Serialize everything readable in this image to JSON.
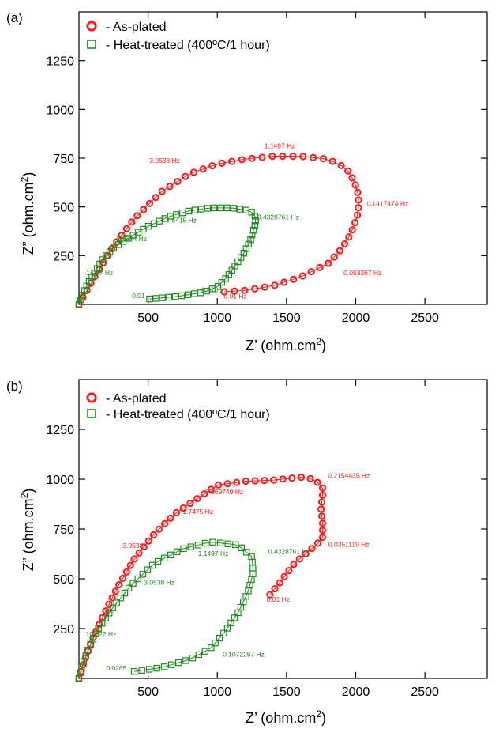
{
  "chart_data": [
    {
      "panel": "(a)",
      "type": "scatter",
      "xlabel": "Z’ (ohm.cm",
      "xlabel_sup": "2",
      "xlabel_close": ")",
      "ylabel": "Z” (ohm.cm",
      "ylabel_sup": "2",
      "ylabel_close": ")",
      "xlim": [
        0,
        2950
      ],
      "ylim": [
        0,
        1500
      ],
      "xticks": [
        "500",
        "1000",
        "1500",
        "2000",
        "2500"
      ],
      "xtick_values": [
        500,
        1000,
        1500,
        2000,
        2500
      ],
      "yticks": [
        "250",
        "500",
        "750",
        "1000",
        "1250"
      ],
      "ytick_values": [
        250,
        500,
        750,
        1000,
        1250
      ],
      "legend": "top-left",
      "series": [
        {
          "name": "- As-plated",
          "marker": "circle",
          "color": "#ff1a1a",
          "path": [
            [
              1050,
              65
            ],
            [
              1200,
              72
            ],
            [
              1400,
              95
            ],
            [
              1600,
              140
            ],
            [
              1800,
              210
            ],
            [
              1880,
              270
            ],
            [
              1940,
              330
            ],
            [
              1980,
              390
            ],
            [
              2010,
              450
            ],
            [
              2020,
              500
            ],
            [
              2020,
              560
            ],
            [
              1990,
              630
            ],
            [
              1930,
              700
            ],
            [
              1800,
              745
            ],
            [
              1600,
              760
            ],
            [
              1400,
              760
            ],
            [
              1200,
              745
            ],
            [
              1000,
              720
            ],
            [
              800,
              670
            ],
            [
              600,
              580
            ],
            [
              400,
              440
            ],
            [
              250,
              300
            ],
            [
              120,
              150
            ],
            [
              40,
              50
            ],
            [
              0,
              0
            ]
          ],
          "annotations": [
            {
              "text": "0.01 Hz",
              "x": 1130,
              "y": 30
            },
            {
              "text": "0.053367 Hz",
              "x": 2050,
              "y": 150
            },
            {
              "text": "0.1417474 Hz",
              "x": 2230,
              "y": 505
            },
            {
              "text": "1.1497 Hz",
              "x": 1450,
              "y": 800
            },
            {
              "text": "3.0538 Hz",
              "x": 620,
              "y": 725
            }
          ]
        },
        {
          "name": "- Heat-treated (400ºC/1 hour)",
          "marker": "square",
          "color": "#1f8a1f",
          "path": [
            [
              510,
              28
            ],
            [
              700,
              40
            ],
            [
              900,
              62
            ],
            [
              1000,
              90
            ],
            [
              1070,
              140
            ],
            [
              1130,
              200
            ],
            [
              1190,
              260
            ],
            [
              1240,
              330
            ],
            [
              1270,
              400
            ],
            [
              1280,
              445
            ],
            [
              1240,
              480
            ],
            [
              1100,
              495
            ],
            [
              950,
              495
            ],
            [
              800,
              480
            ],
            [
              650,
              450
            ],
            [
              500,
              400
            ],
            [
              380,
              350
            ],
            [
              250,
              290
            ],
            [
              170,
              230
            ],
            [
              120,
              170
            ],
            [
              60,
              100
            ],
            [
              20,
              40
            ],
            [
              0,
              0
            ]
          ],
          "annotations": [
            {
              "text": "0.01",
              "x": 430,
              "y": 32
            },
            {
              "text": "0.0705",
              "x": 960,
              "y": 62
            },
            {
              "text": "14.97 Hz",
              "x": 150,
              "y": 150
            },
            {
              "text": "21.544 Hz",
              "x": 380,
              "y": 325
            },
            {
              "text": "4.6415 Hz",
              "x": 740,
              "y": 420
            },
            {
              "text": "0.4328761 Hz",
              "x": 1440,
              "y": 435
            }
          ]
        }
      ]
    },
    {
      "panel": "(b)",
      "type": "scatter",
      "xlabel": "Z’ (ohm.cm",
      "xlabel_sup": "2",
      "xlabel_close": ")",
      "ylabel": "Z” (ohm.cm",
      "ylabel_sup": "2",
      "ylabel_close": ")",
      "xlim": [
        0,
        2950
      ],
      "ylim": [
        0,
        1500
      ],
      "xticks": [
        "500",
        "1000",
        "1500",
        "2000",
        "2500"
      ],
      "xtick_values": [
        500,
        1000,
        1500,
        2000,
        2500
      ],
      "yticks": [
        "250",
        "500",
        "750",
        "1000",
        "1250"
      ],
      "ytick_values": [
        250,
        500,
        750,
        1000,
        1250
      ],
      "legend": "top-left",
      "series": [
        {
          "name": "- As-plated",
          "marker": "circle",
          "color": "#ff1a1a",
          "path": [
            [
              1380,
              420
            ],
            [
              1450,
              480
            ],
            [
              1560,
              580
            ],
            [
              1680,
              650
            ],
            [
              1760,
              700
            ],
            [
              1760,
              780
            ],
            [
              1750,
              850
            ],
            [
              1760,
              920
            ],
            [
              1760,
              960
            ],
            [
              1700,
              1000
            ],
            [
              1600,
              1010
            ],
            [
              1400,
              995
            ],
            [
              1200,
              990
            ],
            [
              1000,
              970
            ],
            [
              850,
              900
            ],
            [
              700,
              830
            ],
            [
              550,
              730
            ],
            [
              400,
              600
            ],
            [
              280,
              460
            ],
            [
              180,
              320
            ],
            [
              100,
              200
            ],
            [
              40,
              90
            ],
            [
              0,
              0
            ]
          ],
          "annotations": [
            {
              "text": "0.01 Hz",
              "x": 1440,
              "y": 385
            },
            {
              "text": "0.0351119 Hz",
              "x": 1950,
              "y": 660
            },
            {
              "text": "0.2154435 Hz",
              "x": 1950,
              "y": 1005
            },
            {
              "text": "0.869749 Hz",
              "x": 1050,
              "y": 925
            },
            {
              "text": "1.7475 Hz",
              "x": 860,
              "y": 825
            },
            {
              "text": "3.0538",
              "x": 390,
              "y": 655
            }
          ]
        },
        {
          "name": "- Heat-treated (400ºC/1 hour)",
          "marker": "square",
          "color": "#1f8a1f",
          "path": [
            [
              400,
              35
            ],
            [
              600,
              55
            ],
            [
              800,
              95
            ],
            [
              950,
              150
            ],
            [
              1050,
              230
            ],
            [
              1150,
              330
            ],
            [
              1220,
              430
            ],
            [
              1260,
              530
            ],
            [
              1250,
              610
            ],
            [
              1150,
              670
            ],
            [
              950,
              685
            ],
            [
              750,
              650
            ],
            [
              550,
              580
            ],
            [
              380,
              470
            ],
            [
              250,
              360
            ],
            [
              140,
              250
            ],
            [
              70,
              150
            ],
            [
              20,
              60
            ],
            [
              0,
              0
            ]
          ],
          "annotations": [
            {
              "text": "0.0265",
              "x": 270,
              "y": 40
            },
            {
              "text": "0.1072267 Hz",
              "x": 1190,
              "y": 110
            },
            {
              "text": "10.722 Hz",
              "x": 160,
              "y": 210
            },
            {
              "text": "3.0538 Hz",
              "x": 580,
              "y": 470
            },
            {
              "text": "1.1497 Hz",
              "x": 970,
              "y": 615
            },
            {
              "text": "0.4328761 Hz",
              "x": 1520,
              "y": 625
            }
          ]
        }
      ]
    }
  ]
}
